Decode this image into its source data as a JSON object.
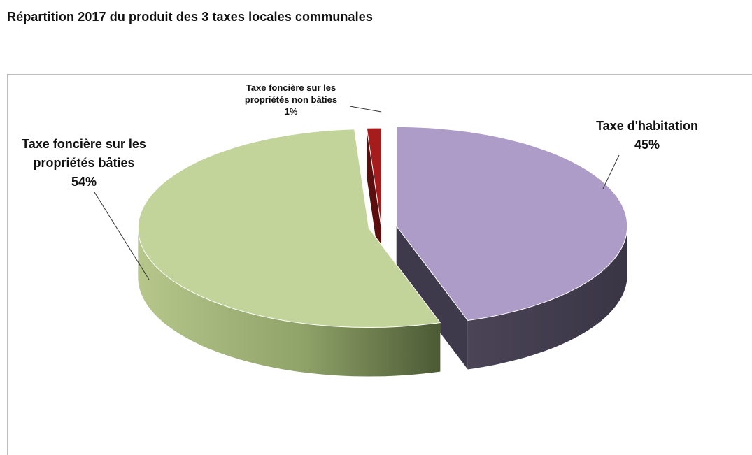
{
  "chart_data": {
    "type": "pie",
    "title": "Répartition 2017 du produit des 3 taxes locales communales",
    "slices": [
      {
        "label_lines": [
          "Taxe d'habitation"
        ],
        "pct_label": "45%",
        "value": 45,
        "color": "#ae9cc8",
        "side_color": "#3f3a4b"
      },
      {
        "label_lines": [
          "Taxe foncière sur les",
          "propriétés bâties"
        ],
        "pct_label": "54%",
        "value": 54,
        "color": "#c3d49a",
        "side_color": "#8a9c66"
      },
      {
        "label_lines": [
          "Taxe foncière sur les",
          "propriétés non bâties"
        ],
        "pct_label": "1%",
        "value": 1,
        "color": "#a61c1c",
        "side_color": "#5a0e0e"
      }
    ],
    "legend": "none",
    "style": "3d-exploded"
  }
}
